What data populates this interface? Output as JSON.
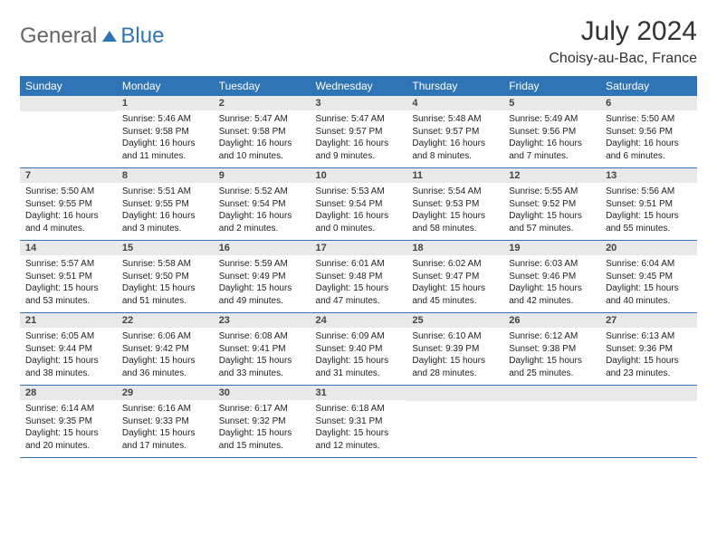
{
  "brand": {
    "word1": "General",
    "word2": "Blue"
  },
  "header": {
    "month": "July 2024",
    "location": "Choisy-au-Bac, France"
  },
  "columns": [
    "Sunday",
    "Monday",
    "Tuesday",
    "Wednesday",
    "Thursday",
    "Friday",
    "Saturday"
  ],
  "colors": {
    "header_bg": "#2f74b5",
    "header_fg": "#ffffff",
    "daynum_bg": "#e9e9e9",
    "row_border": "#2f74b5",
    "page_bg": "#ffffff",
    "text": "#222222"
  },
  "typography": {
    "month_fontsize": 30,
    "location_fontsize": 16,
    "th_fontsize": 12,
    "cell_fontsize": 10
  },
  "weeks": [
    [
      null,
      {
        "n": "1",
        "sr": "5:46 AM",
        "ss": "9:58 PM",
        "dl": "16 hours and 11 minutes."
      },
      {
        "n": "2",
        "sr": "5:47 AM",
        "ss": "9:58 PM",
        "dl": "16 hours and 10 minutes."
      },
      {
        "n": "3",
        "sr": "5:47 AM",
        "ss": "9:57 PM",
        "dl": "16 hours and 9 minutes."
      },
      {
        "n": "4",
        "sr": "5:48 AM",
        "ss": "9:57 PM",
        "dl": "16 hours and 8 minutes."
      },
      {
        "n": "5",
        "sr": "5:49 AM",
        "ss": "9:56 PM",
        "dl": "16 hours and 7 minutes."
      },
      {
        "n": "6",
        "sr": "5:50 AM",
        "ss": "9:56 PM",
        "dl": "16 hours and 6 minutes."
      }
    ],
    [
      {
        "n": "7",
        "sr": "5:50 AM",
        "ss": "9:55 PM",
        "dl": "16 hours and 4 minutes."
      },
      {
        "n": "8",
        "sr": "5:51 AM",
        "ss": "9:55 PM",
        "dl": "16 hours and 3 minutes."
      },
      {
        "n": "9",
        "sr": "5:52 AM",
        "ss": "9:54 PM",
        "dl": "16 hours and 2 minutes."
      },
      {
        "n": "10",
        "sr": "5:53 AM",
        "ss": "9:54 PM",
        "dl": "16 hours and 0 minutes."
      },
      {
        "n": "11",
        "sr": "5:54 AM",
        "ss": "9:53 PM",
        "dl": "15 hours and 58 minutes."
      },
      {
        "n": "12",
        "sr": "5:55 AM",
        "ss": "9:52 PM",
        "dl": "15 hours and 57 minutes."
      },
      {
        "n": "13",
        "sr": "5:56 AM",
        "ss": "9:51 PM",
        "dl": "15 hours and 55 minutes."
      }
    ],
    [
      {
        "n": "14",
        "sr": "5:57 AM",
        "ss": "9:51 PM",
        "dl": "15 hours and 53 minutes."
      },
      {
        "n": "15",
        "sr": "5:58 AM",
        "ss": "9:50 PM",
        "dl": "15 hours and 51 minutes."
      },
      {
        "n": "16",
        "sr": "5:59 AM",
        "ss": "9:49 PM",
        "dl": "15 hours and 49 minutes."
      },
      {
        "n": "17",
        "sr": "6:01 AM",
        "ss": "9:48 PM",
        "dl": "15 hours and 47 minutes."
      },
      {
        "n": "18",
        "sr": "6:02 AM",
        "ss": "9:47 PM",
        "dl": "15 hours and 45 minutes."
      },
      {
        "n": "19",
        "sr": "6:03 AM",
        "ss": "9:46 PM",
        "dl": "15 hours and 42 minutes."
      },
      {
        "n": "20",
        "sr": "6:04 AM",
        "ss": "9:45 PM",
        "dl": "15 hours and 40 minutes."
      }
    ],
    [
      {
        "n": "21",
        "sr": "6:05 AM",
        "ss": "9:44 PM",
        "dl": "15 hours and 38 minutes."
      },
      {
        "n": "22",
        "sr": "6:06 AM",
        "ss": "9:42 PM",
        "dl": "15 hours and 36 minutes."
      },
      {
        "n": "23",
        "sr": "6:08 AM",
        "ss": "9:41 PM",
        "dl": "15 hours and 33 minutes."
      },
      {
        "n": "24",
        "sr": "6:09 AM",
        "ss": "9:40 PM",
        "dl": "15 hours and 31 minutes."
      },
      {
        "n": "25",
        "sr": "6:10 AM",
        "ss": "9:39 PM",
        "dl": "15 hours and 28 minutes."
      },
      {
        "n": "26",
        "sr": "6:12 AM",
        "ss": "9:38 PM",
        "dl": "15 hours and 25 minutes."
      },
      {
        "n": "27",
        "sr": "6:13 AM",
        "ss": "9:36 PM",
        "dl": "15 hours and 23 minutes."
      }
    ],
    [
      {
        "n": "28",
        "sr": "6:14 AM",
        "ss": "9:35 PM",
        "dl": "15 hours and 20 minutes."
      },
      {
        "n": "29",
        "sr": "6:16 AM",
        "ss": "9:33 PM",
        "dl": "15 hours and 17 minutes."
      },
      {
        "n": "30",
        "sr": "6:17 AM",
        "ss": "9:32 PM",
        "dl": "15 hours and 15 minutes."
      },
      {
        "n": "31",
        "sr": "6:18 AM",
        "ss": "9:31 PM",
        "dl": "15 hours and 12 minutes."
      },
      null,
      null,
      null
    ]
  ],
  "labels": {
    "sunrise": "Sunrise:",
    "sunset": "Sunset:",
    "daylight": "Daylight:"
  }
}
